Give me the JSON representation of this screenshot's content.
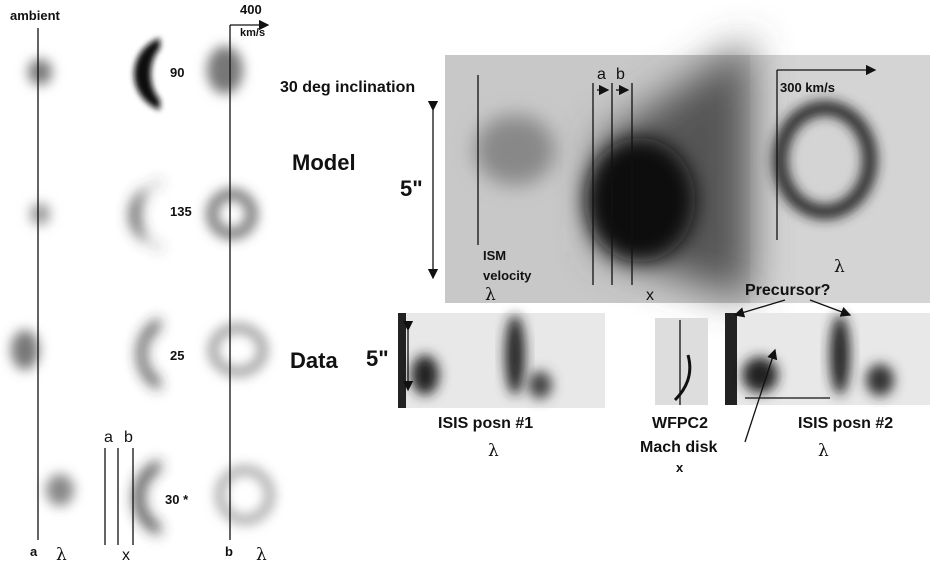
{
  "left": {
    "ambient": "ambient",
    "scale_value": "400",
    "scale_unit": "km/s",
    "angles": [
      "90",
      "135",
      "25",
      "30 *"
    ],
    "ab": [
      "a",
      "b"
    ],
    "bottom": {
      "a": "a",
      "lambda1": "λ",
      "x": "x",
      "b": "b",
      "lambda2": "λ"
    }
  },
  "model": {
    "title": "30 deg inclination",
    "row_label": "Model",
    "size": "5\"",
    "ab": [
      "a",
      "b"
    ],
    "scale": "300 km/s",
    "ism": [
      "ISM",
      "velocity"
    ],
    "axes": [
      "λ",
      "x",
      "λ"
    ]
  },
  "data": {
    "row_label": "Data",
    "size": "5\"",
    "precursor": "Precursor?",
    "isis1": {
      "label": "ISIS posn #1",
      "axis": "λ"
    },
    "wfpc2": {
      "label": "WFPC2",
      "note": "Mach disk",
      "axis": "x"
    },
    "isis2": {
      "label": "ISIS posn #2",
      "axis": "λ"
    }
  }
}
